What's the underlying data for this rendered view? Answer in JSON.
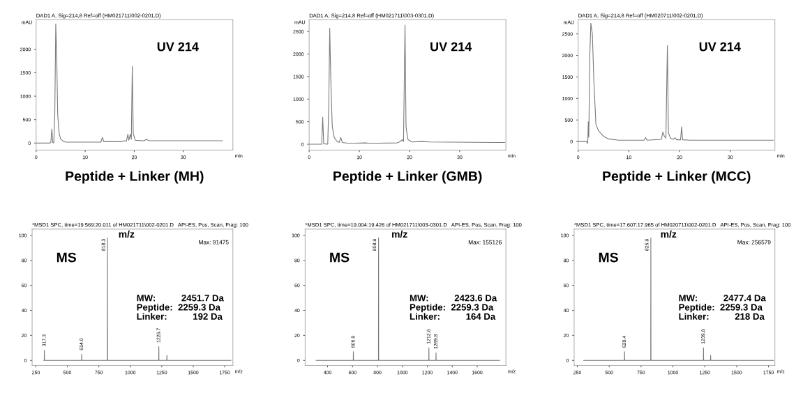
{
  "chart_data": [
    {
      "type": "line",
      "title": "Peptide + Linker (MH)",
      "subtitle": "DAD1 A, Sig=214,8 Ref=off (HM021711\\002-0201.D)",
      "xlabel": "min",
      "ylabel": "mAU",
      "annotations": [
        "UV 214"
      ],
      "xlim": [
        0,
        40.1
      ],
      "ylim": [
        -150,
        2630
      ],
      "xticks": [
        0,
        10,
        20,
        30
      ],
      "yticks": [
        0,
        500,
        1000,
        1500,
        2000
      ],
      "series": [
        {
          "color": "#7a7a7a",
          "x": [
            0,
            2.8,
            3.0,
            3.2,
            3.4,
            3.6,
            3.8,
            4.0,
            4.2,
            4.4,
            4.7,
            5.0,
            5.5,
            6,
            8,
            13.2,
            13.5,
            13.8,
            17.5,
            18,
            18.4,
            18.7,
            18.9,
            19.2,
            19.4,
            19.6,
            19.8,
            20.2,
            22,
            22.5,
            23,
            30,
            38
          ],
          "values": [
            0,
            0,
            20,
            300,
            10,
            0,
            600,
            2540,
            1800,
            600,
            200,
            90,
            40,
            20,
            20,
            20,
            120,
            30,
            30,
            50,
            40,
            190,
            60,
            190,
            80,
            1640,
            200,
            60,
            50,
            80,
            50,
            50,
            50
          ]
        }
      ]
    },
    {
      "type": "line",
      "title": "Peptide + Linker (GMB)",
      "subtitle": "DAD1 A, Sig=214,8 Ref=off (HM021711\\003-0301.D)",
      "xlabel": "min",
      "ylabel": "mAU",
      "annotations": [
        "UV 214"
      ],
      "xlim": [
        0,
        39.2
      ],
      "ylim": [
        -130,
        2760
      ],
      "xticks": [
        0,
        10,
        20,
        30
      ],
      "yticks": [
        0,
        500,
        1000,
        1500,
        2000,
        2500
      ],
      "series": [
        {
          "color": "#7a7a7a",
          "x": [
            0,
            2.5,
            2.7,
            2.9,
            3.7,
            3.9,
            4.1,
            4.3,
            4.6,
            5.0,
            5.5,
            6,
            6.3,
            6.6,
            8,
            11.3,
            12,
            17.5,
            18,
            18.6,
            18.8,
            19.1,
            19.3,
            19.4,
            19.7,
            20.5,
            22.5,
            24,
            37,
            39
          ],
          "values": [
            0,
            0,
            600,
            10,
            0,
            800,
            2570,
            1500,
            400,
            150,
            70,
            40,
            150,
            40,
            20,
            30,
            20,
            30,
            50,
            100,
            60,
            2640,
            400,
            300,
            100,
            50,
            60,
            50,
            40,
            40
          ]
        }
      ]
    },
    {
      "type": "line",
      "title": "Peptide + Linker (MCC)",
      "subtitle": "DAD1 A, Sig=214,8 Ref=off (HM020711\\002-0201.D)",
      "xlabel": "min",
      "ylabel": "mAU",
      "annotations": [
        "UV 214"
      ],
      "xlim": [
        0,
        38.8
      ],
      "ylim": [
        -200,
        2830
      ],
      "xticks": [
        0,
        10,
        20,
        30
      ],
      "yticks": [
        0,
        500,
        1000,
        1500,
        2000,
        2500
      ],
      "series": [
        {
          "color": "#7a7a7a",
          "x": [
            0,
            1.7,
            1.8,
            1.9,
            2.0,
            2.1,
            2.3,
            2.5,
            2.8,
            3.1,
            3.5,
            4,
            5,
            6,
            8,
            13,
            13.3,
            13.6,
            16.4,
            16.7,
            17.0,
            17.3,
            17.6,
            17.8,
            18.2,
            18.8,
            19.1,
            19.4,
            20.2,
            20.4,
            20.6,
            22,
            38.5
          ],
          "values": [
            0,
            0,
            -50,
            0,
            460,
            100,
            2000,
            2750,
            2500,
            1400,
            400,
            250,
            120,
            60,
            30,
            30,
            90,
            30,
            50,
            220,
            120,
            80,
            2230,
            200,
            80,
            50,
            90,
            40,
            40,
            340,
            40,
            30,
            30
          ]
        }
      ]
    },
    {
      "type": "line",
      "subtitle": "*MSD1 SPC, time=19.569:20.011 of HM021711\\002-0201.D   API-ES, Pos, Scan, Frag: 100",
      "xlabel": "m/z",
      "annotations": [
        "MS",
        "m/z",
        "MW:          2451.7 Da\nPeptide:  2259.3 Da\nLinker:          192 Da",
        "Max: 91475",
        {
          "text": "317.3",
          "x": 317.3,
          "y": 8
        },
        {
          "text": "614.0",
          "x": 614.0,
          "y": 5
        },
        {
          "text": "818.3",
          "x": 818.3,
          "y": 98
        },
        {
          "text": "1226.7",
          "x": 1226.7,
          "y": 11
        }
      ],
      "xlim": [
        220,
        1815
      ],
      "ylim": [
        -4,
        105
      ],
      "xticks": [
        250,
        500,
        750,
        1000,
        1250,
        1500,
        1750
      ],
      "yticks": [
        0,
        20,
        40,
        60,
        80,
        100
      ],
      "series": [
        {
          "color": "#7a7a7a",
          "x": [
            312,
            316.3,
            317.3,
            318.3,
            613,
            614.0,
            615,
            817.3,
            818.3,
            819.3,
            1225.7,
            1226.7,
            1227.7,
            1290,
            1291,
            1292,
            1800
          ],
          "values": [
            0,
            0,
            8,
            0,
            0,
            5,
            0,
            0,
            98,
            0,
            0,
            11,
            0,
            0,
            4,
            0,
            0
          ]
        }
      ]
    },
    {
      "type": "line",
      "subtitle": "*MSD1 SPC, time=19.004:19.426 of HM021711\\003-0301.D   API-ES, Pos, Scan, Frag: 100",
      "xlabel": "m/z",
      "annotations": [
        "MS",
        "m/z",
        "MW:          2423.6 Da\nPeptide:  2259.3 Da\nLinker:          164 Da",
        "Max: 155126",
        {
          "text": "606.9",
          "x": 606.9,
          "y": 7
        },
        {
          "text": "808.8",
          "x": 808.8,
          "y": 98
        },
        {
          "text": "1212.6",
          "x": 1212.6,
          "y": 10
        },
        {
          "text": "1269.8",
          "x": 1269.8,
          "y": 6
        }
      ],
      "xlim": [
        220,
        1830
      ],
      "ylim": [
        -4,
        105
      ],
      "xticks": [
        400,
        600,
        800,
        1000,
        1200,
        1400,
        1600
      ],
      "yticks": [
        0,
        20,
        40,
        60,
        80,
        100
      ],
      "series": [
        {
          "color": "#7a7a7a",
          "x": [
            308,
            605.9,
            606.9,
            607.9,
            807.8,
            808.8,
            809.8,
            1211.6,
            1212.6,
            1213.6,
            1268.8,
            1269.8,
            1270.8,
            1780
          ],
          "values": [
            0,
            0,
            7,
            0,
            0,
            98,
            0,
            0,
            10,
            0,
            0,
            6,
            0,
            0
          ]
        }
      ]
    },
    {
      "type": "line",
      "subtitle": "*MSD1 SPC, time=17.607:17.965 of HM020711\\002-0201.D   API-ES, Pos, Scan, Frag: 100",
      "xlabel": "m/z",
      "annotations": [
        "MS",
        "m/z",
        "MW:          2477.4 Da\nPeptide:  2259.3 Da\nLinker:          218 Da",
        "Max: 256579",
        {
          "text": "620.4",
          "x": 620.4,
          "y": 7
        },
        {
          "text": "826.8",
          "x": 826.8,
          "y": 98
        },
        {
          "text": "1239.8",
          "x": 1239.8,
          "y": 10
        }
      ],
      "xlim": [
        225,
        1800
      ],
      "ylim": [
        -4,
        105
      ],
      "xticks": [
        250,
        500,
        750,
        1000,
        1250,
        1500,
        1750
      ],
      "yticks": [
        0,
        20,
        40,
        60,
        80,
        100
      ],
      "series": [
        {
          "color": "#7a7a7a",
          "x": [
            299,
            619.4,
            620.4,
            621.4,
            825.8,
            826.8,
            827.8,
            1238.8,
            1239.8,
            1240.8,
            1295,
            1296,
            1297,
            1790
          ],
          "values": [
            0,
            0,
            7,
            0,
            0,
            98,
            0,
            0,
            10,
            0,
            0,
            4,
            0,
            0
          ]
        }
      ]
    }
  ]
}
